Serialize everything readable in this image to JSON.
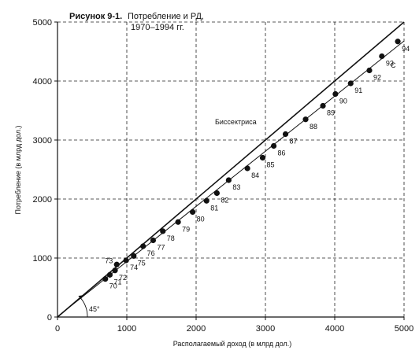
{
  "chart_data": {
    "type": "scatter",
    "title_prefix": "Рисунок 9-1.",
    "title_line1": "Потребление и РД,",
    "title_line2": "1970–1994 гг.",
    "xlabel": "Располагаемый доход (в млрд дол.)",
    "ylabel": "Потребление (в млрд дол.)",
    "xlim": [
      0,
      5000
    ],
    "ylim": [
      0,
      5000
    ],
    "x_ticks": [
      0,
      1000,
      2000,
      3000,
      4000,
      5000
    ],
    "y_ticks": [
      0,
      1000,
      2000,
      3000,
      4000,
      5000
    ],
    "grid": "dashed",
    "bisector_label": "Биссектриса",
    "angle_label": "45°",
    "regression_label": "C",
    "points": [
      {
        "label": "70",
        "x": 690,
        "y": 645
      },
      {
        "label": "71",
        "x": 755,
        "y": 715
      },
      {
        "label": "72",
        "x": 830,
        "y": 790
      },
      {
        "label": "73",
        "x": 855,
        "y": 890
      },
      {
        "label": "74",
        "x": 990,
        "y": 960
      },
      {
        "label": "75",
        "x": 1100,
        "y": 1035
      },
      {
        "label": "76",
        "x": 1235,
        "y": 1200
      },
      {
        "label": "77",
        "x": 1380,
        "y": 1300
      },
      {
        "label": "78",
        "x": 1520,
        "y": 1455
      },
      {
        "label": "79",
        "x": 1740,
        "y": 1610
      },
      {
        "label": "80",
        "x": 1950,
        "y": 1780
      },
      {
        "label": "81",
        "x": 2150,
        "y": 1970
      },
      {
        "label": "82",
        "x": 2300,
        "y": 2100
      },
      {
        "label": "83",
        "x": 2470,
        "y": 2320
      },
      {
        "label": "84",
        "x": 2740,
        "y": 2520
      },
      {
        "label": "85",
        "x": 2960,
        "y": 2700
      },
      {
        "label": "86",
        "x": 3120,
        "y": 2900
      },
      {
        "label": "87",
        "x": 3290,
        "y": 3100
      },
      {
        "label": "88",
        "x": 3580,
        "y": 3350
      },
      {
        "label": "89",
        "x": 3830,
        "y": 3580
      },
      {
        "label": "90",
        "x": 4010,
        "y": 3780
      },
      {
        "label": "91",
        "x": 4230,
        "y": 3960
      },
      {
        "label": "92",
        "x": 4500,
        "y": 4180
      },
      {
        "label": "93",
        "x": 4680,
        "y": 4420
      },
      {
        "label": "94",
        "x": 4910,
        "y": 4670
      }
    ]
  }
}
